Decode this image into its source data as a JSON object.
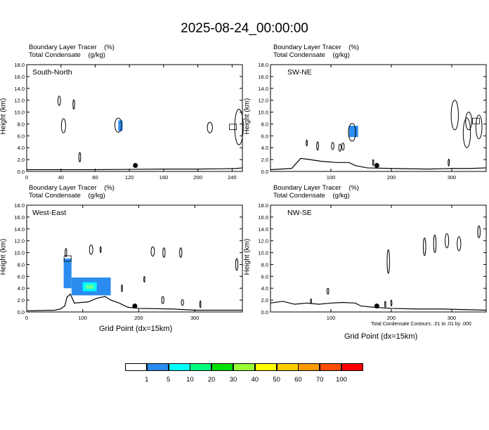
{
  "title": "2025-08-24_00:00:00",
  "panel_title_line1": "Boundary Layer Tracer    (%)",
  "panel_title_line2": "Total Condensate    (g/kg)",
  "ylabel": "Height (km)",
  "xlabel": "Grid Point (dx=15km)",
  "footnote": "Total Condensate Contours: .01 to .01 by .000",
  "colors": {
    "shade_blue": "#2b8cf0",
    "shade_cyan": "#00ffff",
    "shade_green": "#66ff99",
    "terrain": "#000000",
    "marker": "#000000"
  },
  "colorbar": {
    "colors": [
      "#ffffff",
      "#2b8cf0",
      "#00ffff",
      "#00ff80",
      "#00e000",
      "#99ff33",
      "#ffff00",
      "#ffcc00",
      "#ff9900",
      "#ff4d00",
      "#ff0000"
    ],
    "labels": [
      "1",
      "5",
      "10",
      "20",
      "30",
      "40",
      "50",
      "60",
      "70",
      "100"
    ]
  },
  "chart_data": [
    {
      "type": "area",
      "label": "South-North",
      "xlim": [
        0,
        252
      ],
      "ylim": [
        0,
        18
      ],
      "xticks": [
        0,
        40,
        80,
        120,
        160,
        200,
        240
      ],
      "yticks": [
        "0.0",
        "2.0",
        "4.0",
        "6.0",
        "8.0",
        "10.0",
        "12.0",
        "14.0",
        "16.0",
        "18.0"
      ],
      "terrain": [
        [
          0,
          0.3
        ],
        [
          40,
          0.3
        ],
        [
          80,
          0.3
        ],
        [
          120,
          0.35
        ],
        [
          160,
          0.4
        ],
        [
          200,
          0.4
        ],
        [
          230,
          0.45
        ],
        [
          245,
          0.5
        ],
        [
          252,
          0.6
        ]
      ],
      "marker": [
        127,
        1.0
      ],
      "shaded": [
        {
          "x": [
            107,
            112
          ],
          "y": [
            6.8,
            8.6
          ],
          "color": "blue"
        }
      ],
      "contours": [
        [
          43,
          7.7,
          2.5,
          1.2
        ],
        [
          38,
          11.9,
          1.5,
          0.8
        ],
        [
          55,
          11.3,
          1,
          0.8
        ],
        [
          62,
          2.4,
          1,
          0.8
        ],
        [
          107,
          7.8,
          4,
          1.2
        ],
        [
          214,
          7.4,
          3,
          0.9
        ],
        [
          248,
          7.5,
          5,
          3
        ]
      ],
      "boxes": [
        [
          241,
          7.5
        ]
      ]
    },
    {
      "type": "area",
      "label": "SW-NE",
      "xlim": [
        0,
        357
      ],
      "ylim": [
        0,
        18
      ],
      "xticks": [
        100,
        200,
        300
      ],
      "yticks": [
        "0.0",
        "2.0",
        "4.0",
        "6.0",
        "8.0",
        "10.0",
        "12.0",
        "14.0",
        "16.0",
        "18.0"
      ],
      "terrain": [
        [
          0,
          0.3
        ],
        [
          35,
          0.5
        ],
        [
          50,
          2.2
        ],
        [
          65,
          2.0
        ],
        [
          85,
          1.7
        ],
        [
          110,
          1.5
        ],
        [
          130,
          1.5
        ],
        [
          140,
          1.0
        ],
        [
          160,
          0.6
        ],
        [
          200,
          0.5
        ],
        [
          260,
          0.4
        ],
        [
          300,
          0.5
        ],
        [
          330,
          0.5
        ],
        [
          357,
          0.6
        ]
      ],
      "marker": [
        176,
        1.0
      ],
      "shaded": [
        {
          "x": [
            130,
            145
          ],
          "y": [
            5.8,
            7.7
          ],
          "color": "blue"
        }
      ],
      "contours": [
        [
          135,
          6.6,
          6,
          1.5
        ],
        [
          115,
          4.0,
          2,
          0.6
        ],
        [
          120,
          4.2,
          2,
          0.6
        ],
        [
          103,
          4.3,
          2,
          0.6
        ],
        [
          78,
          4.3,
          1.5,
          0.7
        ],
        [
          60,
          4.8,
          1,
          0.5
        ],
        [
          170,
          1.5,
          1,
          0.5
        ],
        [
          305,
          9.5,
          6,
          2.5
        ],
        [
          325,
          6.5,
          6,
          2.5
        ],
        [
          345,
          7.5,
          5,
          2.0
        ],
        [
          295,
          1.5,
          1,
          0.6
        ],
        [
          328,
          8.5,
          5,
          1.5
        ]
      ],
      "boxes": [
        [
          340,
          8.5
        ]
      ]
    },
    {
      "type": "area",
      "label": "West-East",
      "xlim": [
        0,
        385
      ],
      "ylim": [
        0,
        18
      ],
      "xticks": [
        0,
        100,
        200,
        300
      ],
      "yticks": [
        "0.0",
        "2.0",
        "4.0",
        "6.0",
        "8.0",
        "10.0",
        "12.0",
        "14.0",
        "16.0",
        "18.0"
      ],
      "terrain": [
        [
          0,
          0.2
        ],
        [
          50,
          0.3
        ],
        [
          60,
          0.5
        ],
        [
          68,
          1.0
        ],
        [
          72,
          2.5
        ],
        [
          78,
          3.0
        ],
        [
          85,
          1.5
        ],
        [
          110,
          1.7
        ],
        [
          125,
          2.3
        ],
        [
          140,
          2.6
        ],
        [
          150,
          2.0
        ],
        [
          165,
          1.5
        ],
        [
          180,
          0.8
        ],
        [
          200,
          0.6
        ],
        [
          260,
          0.5
        ],
        [
          300,
          0.3
        ],
        [
          385,
          0.3
        ]
      ],
      "marker": [
        193,
        1.0
      ],
      "shaded": [
        {
          "x": [
            66,
            80
          ],
          "y": [
            4.0,
            9.0
          ],
          "color": "blue"
        },
        {
          "x": [
            80,
            150
          ],
          "y": [
            2.8,
            5.8
          ],
          "color": "blue"
        },
        {
          "x": [
            100,
            125
          ],
          "y": [
            3.5,
            5.0
          ],
          "color": "cyan"
        },
        {
          "x": [
            105,
            120
          ],
          "y": [
            3.9,
            4.6
          ],
          "color": "green"
        }
      ],
      "contours": [
        [
          70,
          10.0,
          1.5,
          0.7
        ],
        [
          115,
          10.5,
          3,
          0.8
        ],
        [
          132,
          10.5,
          1,
          0.5
        ],
        [
          170,
          4.0,
          1,
          0.6
        ],
        [
          225,
          10.2,
          3,
          0.8
        ],
        [
          245,
          10.0,
          2,
          0.8
        ],
        [
          275,
          10.0,
          2,
          0.8
        ],
        [
          375,
          8.0,
          2,
          1
        ],
        [
          243,
          2.0,
          2,
          0.6
        ],
        [
          278,
          1.6,
          2,
          0.5
        ],
        [
          310,
          1.3,
          1,
          0.6
        ],
        [
          210,
          5.5,
          1,
          0.5
        ]
      ],
      "boxes": [
        [
          73,
          9.0
        ]
      ]
    },
    {
      "type": "area",
      "label": "NW-SE",
      "xlim": [
        0,
        357
      ],
      "ylim": [
        0,
        18
      ],
      "xticks": [
        100,
        200,
        300
      ],
      "yticks": [
        "0.0",
        "2.0",
        "4.0",
        "6.0",
        "8.0",
        "10.0",
        "12.0",
        "14.0",
        "16.0",
        "18.0"
      ],
      "terrain": [
        [
          0,
          1.5
        ],
        [
          20,
          1.8
        ],
        [
          40,
          1.3
        ],
        [
          60,
          1.5
        ],
        [
          80,
          1.3
        ],
        [
          100,
          1.5
        ],
        [
          120,
          1.6
        ],
        [
          140,
          1.5
        ],
        [
          150,
          1.0
        ],
        [
          170,
          0.8
        ],
        [
          200,
          0.6
        ],
        [
          240,
          0.5
        ],
        [
          280,
          0.5
        ],
        [
          320,
          0.4
        ],
        [
          357,
          0.3
        ]
      ],
      "marker": [
        176,
        1.0
      ],
      "shaded": [],
      "contours": [
        [
          95,
          3.5,
          1.5,
          0.5
        ],
        [
          195,
          8.5,
          2,
          2.0
        ],
        [
          255,
          11.0,
          2,
          1.5
        ],
        [
          272,
          11.5,
          2,
          1.5
        ],
        [
          292,
          12.0,
          3,
          1.2
        ],
        [
          312,
          11.5,
          3,
          1.2
        ],
        [
          345,
          13.5,
          2,
          1
        ],
        [
          190,
          1.3,
          1,
          0.5
        ],
        [
          200,
          1.5,
          1,
          0.5
        ],
        [
          67,
          1.8,
          1,
          0.4
        ]
      ],
      "boxes": []
    }
  ]
}
